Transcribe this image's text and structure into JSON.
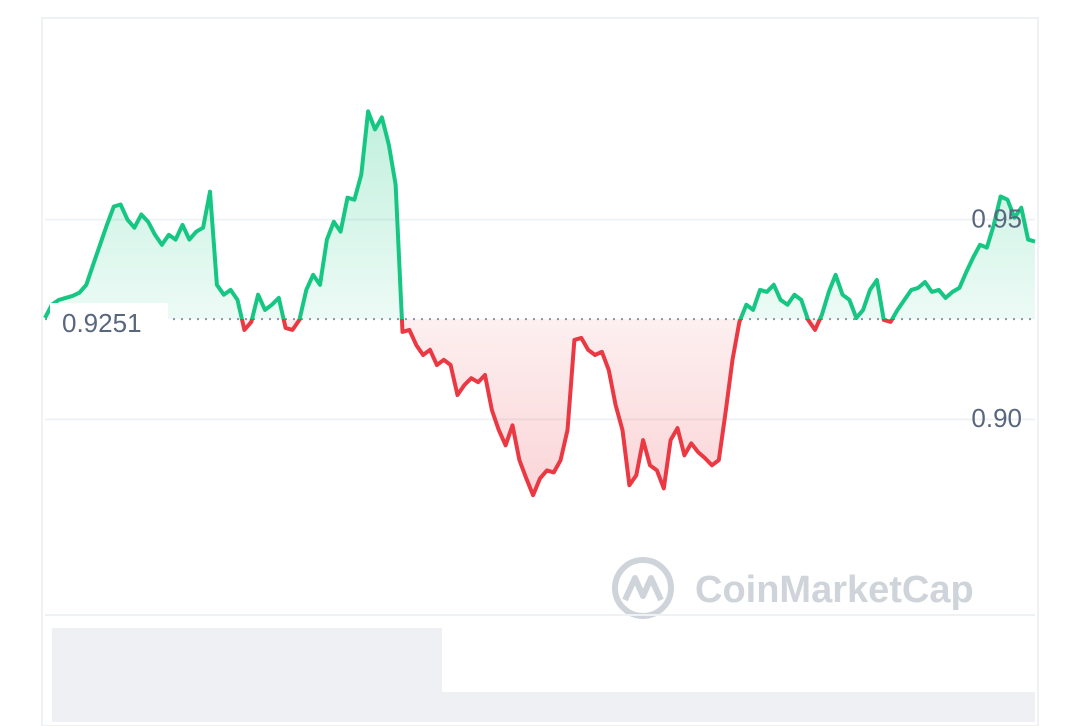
{
  "chart_data": {
    "type": "line",
    "values": [
      0.9254,
      0.9287,
      0.9299,
      0.9304,
      0.9309,
      0.9317,
      0.9337,
      0.9387,
      0.9437,
      0.9487,
      0.9533,
      0.9538,
      0.95,
      0.948,
      0.9513,
      0.9495,
      0.9462,
      0.9437,
      0.9462,
      0.945,
      0.9487,
      0.945,
      0.947,
      0.948,
      0.957,
      0.9337,
      0.9312,
      0.9324,
      0.9299,
      0.9224,
      0.9244,
      0.9312,
      0.9274,
      0.9287,
      0.9304,
      0.9229,
      0.9224,
      0.9249,
      0.9324,
      0.9362,
      0.9337,
      0.945,
      0.9495,
      0.947,
      0.9555,
      0.955,
      0.9613,
      0.9771,
      0.9726,
      0.9756,
      0.9688,
      0.9588,
      0.9219,
      0.9224,
      0.9186,
      0.9161,
      0.9174,
      0.9136,
      0.9149,
      0.9136,
      0.9061,
      0.9086,
      0.9103,
      0.9093,
      0.9111,
      0.9023,
      0.8973,
      0.8935,
      0.8985,
      0.8898,
      0.8852,
      0.881,
      0.8852,
      0.8872,
      0.8867,
      0.8898,
      0.8973,
      0.9199,
      0.9204,
      0.9174,
      0.9161,
      0.9169,
      0.9123,
      0.9036,
      0.8973,
      0.8835,
      0.886,
      0.8948,
      0.8885,
      0.8872,
      0.8827,
      0.8948,
      0.8978,
      0.891,
      0.894,
      0.8918,
      0.8903,
      0.8885,
      0.8898,
      0.9018,
      0.9149,
      0.9244,
      0.9287,
      0.9274,
      0.9324,
      0.9319,
      0.9337,
      0.9299,
      0.9287,
      0.9312,
      0.9299,
      0.9249,
      0.9224,
      0.9262,
      0.9319,
      0.9362,
      0.9312,
      0.9299,
      0.9254,
      0.9274,
      0.9324,
      0.9349,
      0.9249,
      0.9244,
      0.9274,
      0.9299,
      0.9324,
      0.9329,
      0.9344,
      0.9319,
      0.9324,
      0.9304,
      0.9319,
      0.9329,
      0.9369,
      0.9405,
      0.9437,
      0.943,
      0.9487,
      0.9558,
      0.955,
      0.9505,
      0.953,
      0.945,
      0.9445
    ],
    "baseline": 0.9251,
    "up_color": "#16c784",
    "down_color": "#ea3943",
    "ylim": [
      0.851,
      1.0
    ],
    "yticks": [
      {
        "value": 0.9,
        "label": "0.90"
      },
      0.95
    ],
    "grid": true,
    "watermark": "CoinMarketCap"
  }
}
